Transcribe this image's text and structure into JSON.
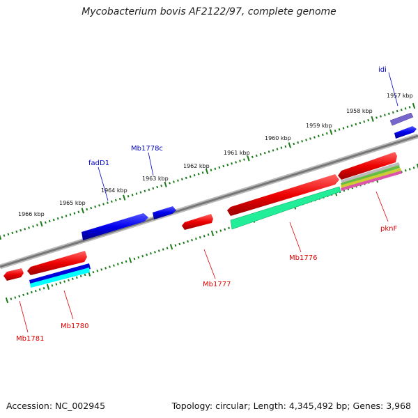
{
  "title": "Mycobacterium bovis AF2122/97, complete genome",
  "footer": {
    "accession": "Accession: NC_002945",
    "summary": "Topology: circular; Length: 4,345,492 bp; Genes: 3,968"
  },
  "colors": {
    "backbone": "#888888",
    "tick_green": "#1a7a1a",
    "forward_gene": "#0000ee",
    "reverse_gene": "#ee0000",
    "forward_label": "#0000cc",
    "reverse_label": "#dd0000",
    "feature_green": "#22ee99",
    "feature_cyan": "#00ffff",
    "feature_purple": "#7766cc"
  },
  "scale_labels": [
    "1957 kbp",
    "1958 kbp",
    "1959 kbp",
    "1960 kbp",
    "1961 kbp",
    "1962 kbp",
    "1963 kbp",
    "1964 kbp",
    "1965 kbp",
    "1966 kbp"
  ],
  "gene_labels": {
    "idi": "idi",
    "mb1778c": "Mb1778c",
    "fadd1": "fadD1",
    "pknf": "pknF",
    "mb1776": "Mb1776",
    "mb1777": "Mb1777",
    "mb1780": "Mb1780",
    "mb1781": "Mb1781"
  }
}
